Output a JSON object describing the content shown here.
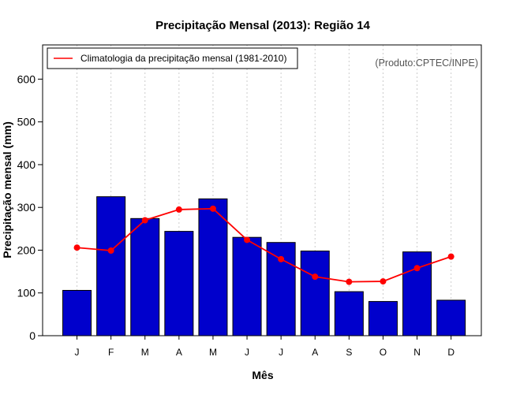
{
  "chart_data": {
    "type": "bar",
    "title": "Precipitação Mensal (2013): Região 14",
    "xlabel": "Mês",
    "ylabel": "Precipitação mensal (mm)",
    "credit": "(Produto:CPTEC/INPE)",
    "ylim": [
      0,
      680
    ],
    "yticks": [
      0,
      100,
      200,
      300,
      400,
      500,
      600
    ],
    "categories": [
      "J",
      "F",
      "M",
      "A",
      "M",
      "J",
      "J",
      "A",
      "S",
      "O",
      "N",
      "D"
    ],
    "series": [
      {
        "name": "Precipitação mensal 2013",
        "kind": "bar",
        "color": "#0000cc",
        "values": [
          106,
          325,
          274,
          244,
          320,
          230,
          218,
          198,
          103,
          80,
          196,
          83
        ]
      },
      {
        "name": "Climatologia da precipitação mensal (1981-2010)",
        "kind": "line",
        "color": "#ff0000",
        "values": [
          206,
          199,
          270,
          295,
          297,
          224,
          179,
          138,
          126,
          127,
          158,
          185
        ]
      }
    ],
    "grid": "vertical dotted",
    "legend": {
      "position": "top-left",
      "entries": [
        "Climatologia da precipitação mensal (1981-2010)"
      ]
    }
  }
}
